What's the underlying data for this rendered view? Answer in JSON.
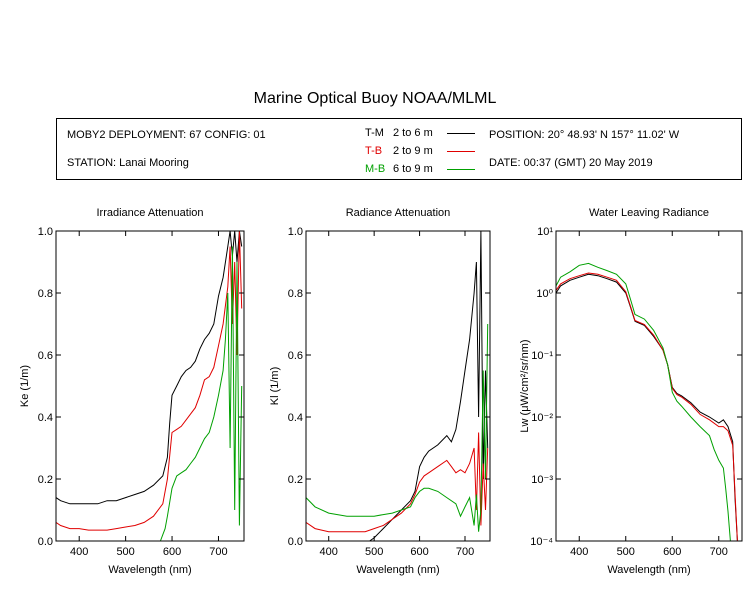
{
  "title": "Marine Optical Buoy NOAA/MLML",
  "info": {
    "deployment": "MOBY2 DEPLOYMENT: 67 CONFIG: 01",
    "station": "STATION: Lanai Mooring",
    "position": "POSITION: 20° 48.93' N   157° 11.02' W",
    "date": "DATE: 00:37 (GMT) 20 May 2019",
    "legend": [
      {
        "code": "T-M",
        "range": "2 to 6  m",
        "color": "#000000"
      },
      {
        "code": "T-B",
        "range": "2 to 9  m",
        "color": "#e00000"
      },
      {
        "code": "M-B",
        "range": "6 to 9  m",
        "color": "#00a000"
      }
    ]
  },
  "chart_data": [
    {
      "type": "line",
      "title": "Irradiance Attenuation",
      "xlabel": "Wavelength (nm)",
      "ylabel": "Ke  (1/m)",
      "xlim": [
        350,
        755
      ],
      "ylim": [
        0,
        1.0
      ],
      "xticks": [
        400,
        500,
        600,
        700
      ],
      "yticks": [
        0.0,
        0.2,
        0.4,
        0.6,
        0.8,
        1.0
      ],
      "ytick_labels": [
        "0.0",
        "0.2",
        "0.4",
        "0.6",
        "0.8",
        "1.0"
      ],
      "series": [
        {
          "name": "T-M",
          "color": "#000000",
          "x": [
            350,
            360,
            380,
            400,
            420,
            440,
            460,
            480,
            500,
            520,
            540,
            560,
            580,
            590,
            595,
            600,
            610,
            620,
            630,
            640,
            650,
            660,
            670,
            680,
            690,
            700,
            710,
            720,
            725,
            730,
            735,
            740,
            745,
            750
          ],
          "y": [
            0.14,
            0.13,
            0.12,
            0.12,
            0.12,
            0.12,
            0.13,
            0.13,
            0.14,
            0.15,
            0.16,
            0.18,
            0.21,
            0.27,
            0.38,
            0.47,
            0.5,
            0.53,
            0.55,
            0.56,
            0.58,
            0.62,
            0.65,
            0.67,
            0.7,
            0.79,
            0.85,
            0.95,
            1.0,
            0.92,
            1.0,
            0.9,
            1.0,
            0.95
          ]
        },
        {
          "name": "T-B",
          "color": "#e00000",
          "x": [
            350,
            360,
            380,
            400,
            420,
            440,
            460,
            480,
            500,
            520,
            540,
            560,
            580,
            590,
            600,
            610,
            620,
            630,
            640,
            650,
            660,
            670,
            680,
            690,
            700,
            710,
            720,
            725,
            730,
            735,
            740,
            745,
            750
          ],
          "y": [
            0.06,
            0.05,
            0.04,
            0.04,
            0.035,
            0.035,
            0.035,
            0.04,
            0.045,
            0.05,
            0.06,
            0.08,
            0.12,
            0.2,
            0.35,
            0.36,
            0.37,
            0.39,
            0.41,
            0.43,
            0.47,
            0.52,
            0.53,
            0.56,
            0.63,
            0.7,
            0.82,
            0.95,
            0.7,
            0.9,
            0.6,
            1.0,
            0.75
          ]
        },
        {
          "name": "M-B",
          "color": "#00a000",
          "x": [
            575,
            585,
            590,
            600,
            610,
            620,
            630,
            640,
            650,
            660,
            670,
            680,
            690,
            700,
            710,
            715,
            720,
            725,
            730,
            735,
            740,
            745,
            750
          ],
          "y": [
            0.0,
            0.04,
            0.08,
            0.17,
            0.21,
            0.22,
            0.23,
            0.25,
            0.27,
            0.3,
            0.33,
            0.35,
            0.4,
            0.47,
            0.55,
            0.65,
            0.8,
            0.3,
            0.95,
            0.1,
            0.9,
            0.05,
            0.5
          ]
        }
      ]
    },
    {
      "type": "line",
      "title": "Radiance Attenuation",
      "xlabel": "Wavelength (nm)",
      "ylabel": "Kl  (1/m)",
      "xlim": [
        350,
        755
      ],
      "ylim": [
        0,
        1.0
      ],
      "xticks": [
        400,
        500,
        600,
        700
      ],
      "yticks": [
        0.0,
        0.2,
        0.4,
        0.6,
        0.8,
        1.0
      ],
      "ytick_labels": [
        "0.0",
        "0.2",
        "0.4",
        "0.6",
        "0.8",
        "1.0"
      ],
      "series": [
        {
          "name": "T-M",
          "color": "#000000",
          "x": [
            490,
            500,
            520,
            540,
            560,
            580,
            590,
            600,
            610,
            620,
            640,
            660,
            670,
            680,
            690,
            700,
            710,
            720,
            725,
            730,
            735,
            740,
            745,
            750
          ],
          "y": [
            0.0,
            0.01,
            0.04,
            0.07,
            0.1,
            0.13,
            0.16,
            0.24,
            0.27,
            0.29,
            0.31,
            0.34,
            0.32,
            0.36,
            0.45,
            0.55,
            0.65,
            0.8,
            0.9,
            0.4,
            1.0,
            0.2,
            0.55,
            0.3
          ]
        },
        {
          "name": "T-B",
          "color": "#e00000",
          "x": [
            350,
            370,
            400,
            440,
            480,
            500,
            520,
            540,
            560,
            580,
            590,
            600,
            610,
            620,
            640,
            660,
            670,
            680,
            690,
            700,
            710,
            720,
            725,
            730,
            735,
            740,
            745,
            750
          ],
          "y": [
            0.06,
            0.04,
            0.03,
            0.03,
            0.03,
            0.04,
            0.05,
            0.07,
            0.09,
            0.12,
            0.15,
            0.19,
            0.21,
            0.22,
            0.24,
            0.26,
            0.24,
            0.22,
            0.23,
            0.22,
            0.25,
            0.3,
            0.1,
            0.35,
            0.05,
            0.25,
            0.1,
            0.3
          ]
        },
        {
          "name": "M-B",
          "color": "#00a000",
          "x": [
            350,
            370,
            400,
            440,
            480,
            500,
            520,
            540,
            560,
            580,
            590,
            600,
            610,
            620,
            640,
            660,
            680,
            690,
            700,
            710,
            720,
            725,
            730,
            735,
            740,
            745,
            750
          ],
          "y": [
            0.14,
            0.11,
            0.09,
            0.08,
            0.08,
            0.08,
            0.085,
            0.09,
            0.1,
            0.11,
            0.14,
            0.16,
            0.17,
            0.17,
            0.16,
            0.14,
            0.12,
            0.08,
            0.11,
            0.14,
            0.05,
            0.15,
            0.03,
            0.1,
            0.55,
            0.2,
            0.7
          ]
        }
      ]
    },
    {
      "type": "line",
      "title": "Water Leaving Radiance",
      "xlabel": "Wavelength (nm)",
      "ylabel": "Lw  (μW/cm²/sr/nm)",
      "xlim": [
        350,
        750
      ],
      "ylim": [
        0.0001,
        10
      ],
      "yscale": "log",
      "xticks": [
        400,
        500,
        600,
        700
      ],
      "yticks": [
        0.0001,
        0.001,
        0.01,
        0.1,
        1,
        10
      ],
      "ytick_labels": [
        "10⁻⁴",
        "10⁻³",
        "10⁻²",
        "10⁻¹",
        "10⁰",
        "10¹"
      ],
      "series": [
        {
          "name": "T-M",
          "color": "#000000",
          "x": [
            350,
            360,
            380,
            400,
            420,
            440,
            460,
            480,
            500,
            510,
            520,
            540,
            560,
            580,
            590,
            600,
            610,
            620,
            640,
            660,
            680,
            700,
            710,
            720,
            730,
            735,
            740
          ],
          "y": [
            1.0,
            1.3,
            1.6,
            1.8,
            2.0,
            1.9,
            1.7,
            1.5,
            1.0,
            0.6,
            0.35,
            0.3,
            0.2,
            0.12,
            0.07,
            0.03,
            0.024,
            0.022,
            0.017,
            0.012,
            0.01,
            0.008,
            0.009,
            0.007,
            0.004,
            0.0005,
            0.0001
          ]
        },
        {
          "name": "T-B",
          "color": "#e00000",
          "x": [
            350,
            360,
            380,
            400,
            420,
            440,
            460,
            480,
            500,
            510,
            520,
            540,
            560,
            580,
            590,
            600,
            610,
            620,
            640,
            660,
            680,
            700,
            710,
            720,
            730,
            735,
            740
          ],
          "y": [
            1.1,
            1.4,
            1.7,
            1.9,
            2.1,
            2.0,
            1.8,
            1.6,
            1.05,
            0.62,
            0.36,
            0.31,
            0.21,
            0.12,
            0.07,
            0.029,
            0.023,
            0.021,
            0.016,
            0.011,
            0.009,
            0.007,
            0.007,
            0.006,
            0.0035,
            0.0006,
            0.0001
          ]
        },
        {
          "name": "M-B",
          "color": "#00a000",
          "x": [
            350,
            360,
            380,
            400,
            420,
            440,
            460,
            480,
            500,
            510,
            520,
            540,
            560,
            580,
            590,
            600,
            610,
            620,
            640,
            660,
            680,
            690,
            700,
            710,
            715,
            720,
            725
          ],
          "y": [
            1.3,
            1.8,
            2.2,
            2.8,
            3.0,
            2.6,
            2.3,
            2.0,
            1.4,
            0.8,
            0.45,
            0.38,
            0.25,
            0.13,
            0.07,
            0.025,
            0.018,
            0.015,
            0.01,
            0.007,
            0.005,
            0.003,
            0.002,
            0.0015,
            0.0007,
            0.0003,
            0.0001
          ]
        }
      ]
    }
  ]
}
